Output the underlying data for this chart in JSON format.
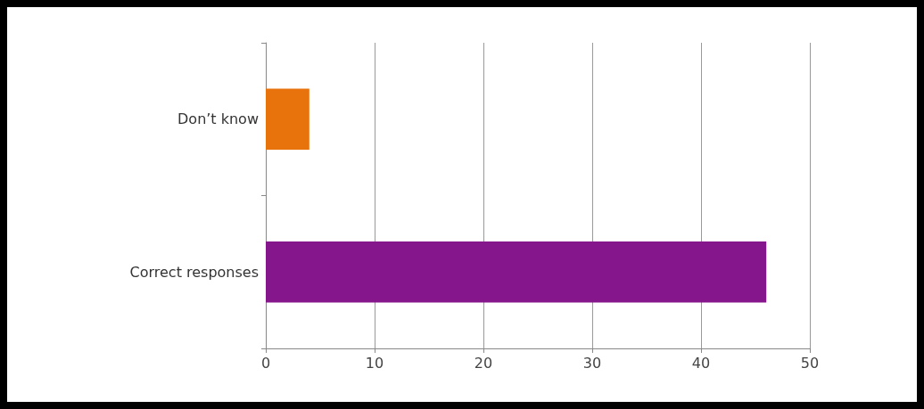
{
  "chart_data": {
    "type": "bar",
    "orientation": "horizontal",
    "categories": [
      "Don’t know",
      "Correct responses"
    ],
    "values": [
      4,
      46
    ],
    "colors": [
      "#e8720c",
      "#85168b"
    ],
    "xlim": [
      0,
      50
    ],
    "xticks": [
      0,
      10,
      20,
      30,
      40,
      50
    ],
    "grid": "x"
  }
}
